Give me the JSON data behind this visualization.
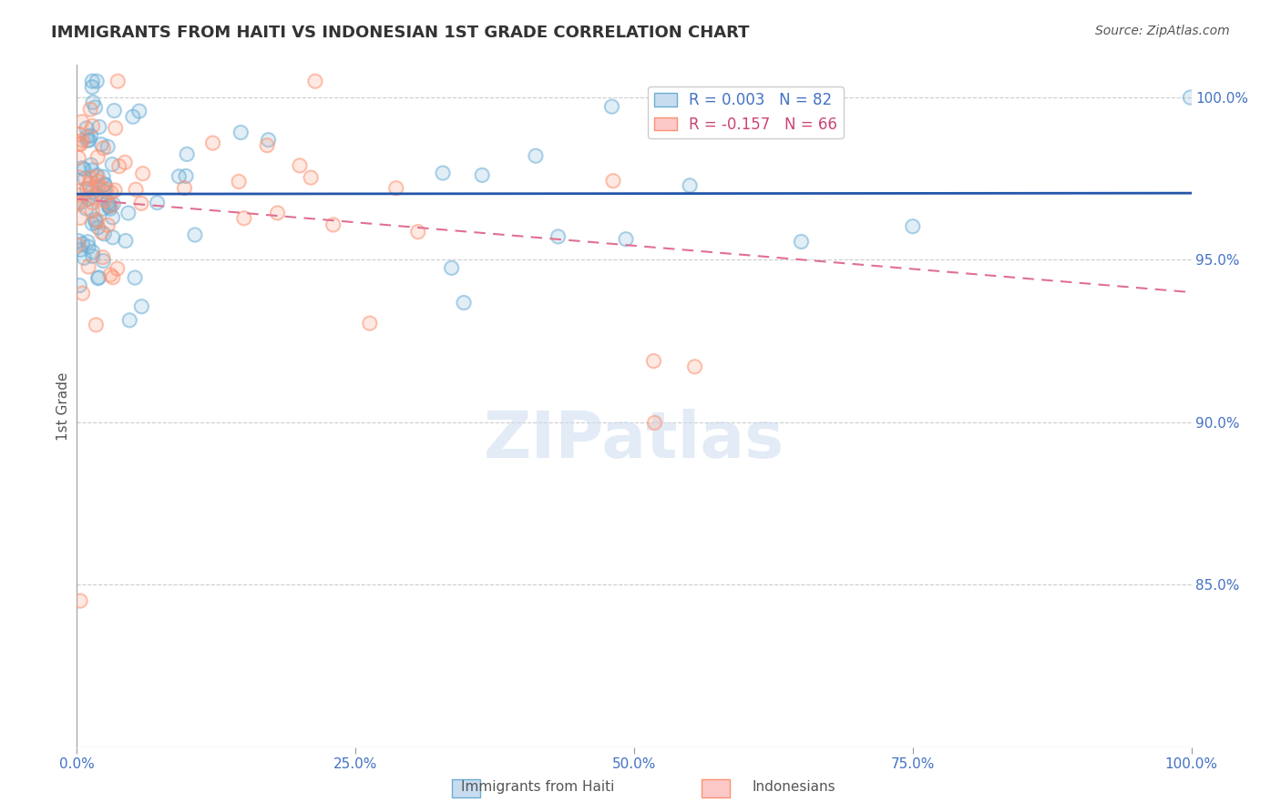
{
  "title": "IMMIGRANTS FROM HAITI VS INDONESIAN 1ST GRADE CORRELATION CHART",
  "source": "Source: ZipAtlas.com",
  "ylabel": "1st Grade",
  "watermark": "ZIPatlas",
  "haiti_color": "#6baed6",
  "indonesian_color": "#fc9272",
  "haiti_R": 0.003,
  "indonesian_R": -0.157,
  "haiti_N": 82,
  "indonesian_N": 66,
  "x_min": 0.0,
  "x_max": 1.0,
  "y_min": 0.8,
  "y_max": 1.01,
  "grid_color": "#cccccc",
  "background_color": "#ffffff",
  "title_color": "#333333",
  "axis_color": "#4472c4",
  "trend_blue_color": "#2255aa",
  "trend_pink_color": "#e07090",
  "legend_label_1": "R = 0.003   N = 82",
  "legend_label_2": "R = -0.157   N = 66",
  "legend_color_1": "#4472c4",
  "legend_color_2": "#cc4477",
  "bottom_label_1": "Immigrants from Haiti",
  "bottom_label_2": "Indonesians"
}
